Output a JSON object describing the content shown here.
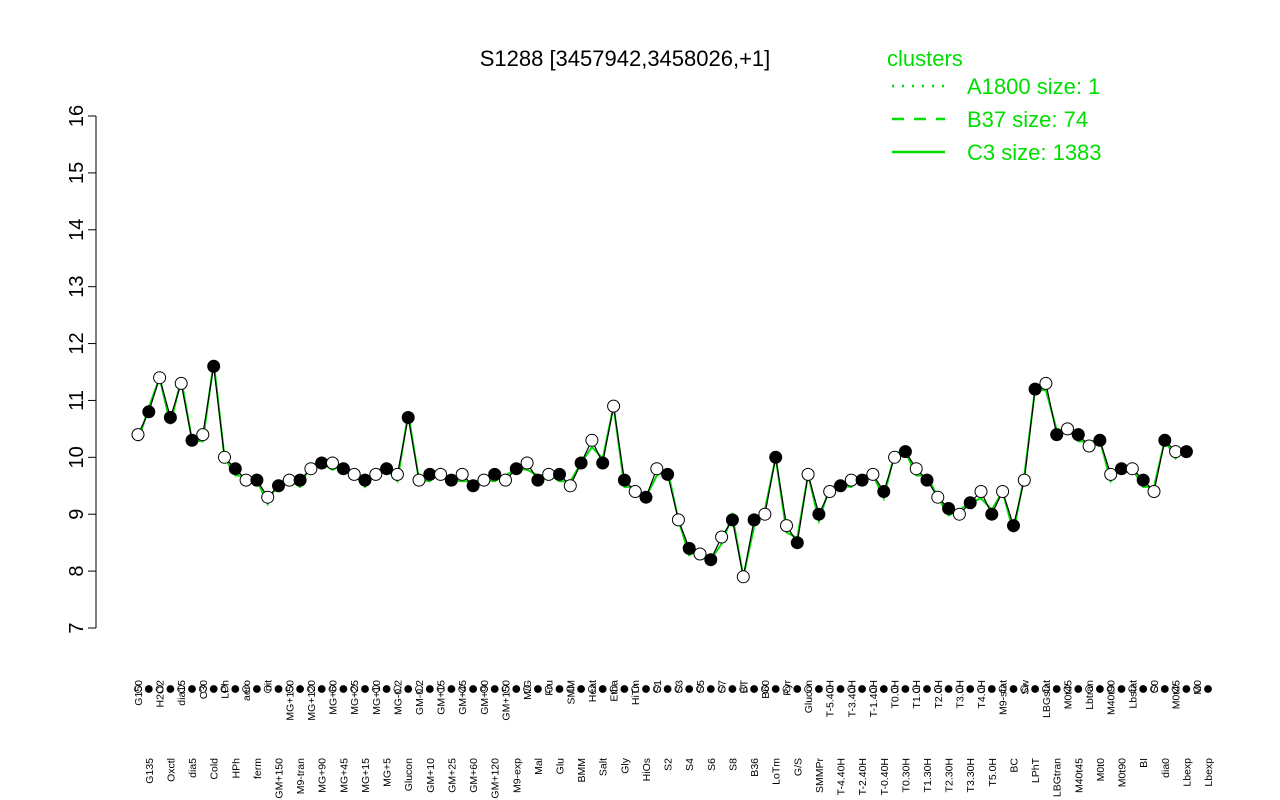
{
  "chart_data": {
    "type": "line",
    "title": "S1288 [3457942,3458026,+1]",
    "xlabel": "",
    "ylabel": "",
    "ylim": [
      7,
      16
    ],
    "yticks": [
      7,
      8,
      9,
      10,
      11,
      12,
      13,
      14,
      15,
      16
    ],
    "grid": false,
    "legend": {
      "title": "clusters",
      "position": "top-right",
      "entries": [
        {
          "label": "A1800 size: 1",
          "style": "dotted"
        },
        {
          "label": "B37 size: 74",
          "style": "dashed"
        },
        {
          "label": "C3 size: 1383",
          "style": "solid"
        }
      ]
    },
    "xlabels_upper": [
      "G150",
      "G135",
      "H2O2",
      "Oxctl",
      "dia15",
      "dia5",
      "C30",
      "Cold",
      "LPh",
      "HPh",
      "aero",
      "ferm",
      "nit",
      "GM+150",
      "MG+150",
      "M9-tran",
      "MG+120",
      "MG+90",
      "MG+60",
      "MG+45",
      "MG+25",
      "MG+15",
      "MG+10",
      "MG+5",
      "MG-0.2",
      "Glucon",
      "GM-0.2",
      "GM+10",
      "GM+15",
      "GM+25",
      "GM+45",
      "GM+60",
      "GM+90",
      "GM+120",
      "GM+150",
      "M9-exp",
      "M/G",
      "Mal",
      "Fru",
      "Glu",
      "SMM",
      "BMM",
      "Heat",
      "Salt",
      "Etha",
      "Gly",
      "HiTm",
      "HiOs",
      "S1",
      "S2",
      "S3",
      "S4",
      "S5",
      "S6",
      "S7",
      "S8",
      "BT",
      "B36",
      "B60",
      "LoTm",
      "Pyr",
      "G/S",
      "Glucon",
      "SMMPr",
      "T-5.40H",
      "T-4.40H",
      "T-3.40H",
      "T-2.40H",
      "T-1.40H",
      "T-0.40H",
      "T0.0H",
      "T0.30H",
      "T1.0H",
      "T1.30H",
      "T2.0H",
      "T2.30H",
      "T3.0H",
      "T3.30H",
      "T4.0H",
      "T5.0H",
      "M9-stat",
      "BC",
      "Sw",
      "LPhT",
      "LBGstat",
      "LBGtran",
      "M0t45",
      "M40t45",
      "Lbtran",
      "M0t0",
      "M40t90",
      "M0t90",
      "Lbstat",
      "BI",
      "S0",
      "dia0",
      "M0t45",
      "Lbexp",
      "M0",
      "Lbexp"
    ],
    "series": [
      {
        "x_index": [
          0,
          1,
          2,
          3,
          4,
          5,
          6,
          7,
          8,
          9,
          10,
          11,
          12,
          13,
          14,
          15,
          16,
          17,
          18,
          19,
          20,
          21,
          22,
          23,
          24,
          25,
          26,
          27,
          28,
          29,
          30,
          31,
          32,
          33,
          34,
          35,
          36,
          37,
          38,
          39,
          40,
          41,
          42,
          43,
          44,
          45,
          46,
          47,
          48,
          49,
          50,
          51,
          52,
          53,
          54,
          55,
          56,
          57,
          58,
          59,
          60,
          61,
          62,
          63,
          64,
          65,
          66,
          67,
          68,
          69,
          70,
          71,
          72,
          73,
          74,
          75,
          76,
          77,
          78,
          79,
          80,
          81,
          82,
          83,
          84,
          85,
          86,
          87,
          88,
          89,
          90,
          91,
          92,
          93,
          94,
          95,
          96,
          97
        ],
        "values": [
          10.4,
          10.8,
          11.4,
          10.7,
          11.3,
          10.3,
          10.4,
          11.6,
          10.0,
          9.8,
          9.6,
          9.6,
          9.3,
          9.5,
          9.6,
          9.6,
          9.8,
          9.9,
          9.9,
          9.8,
          9.7,
          9.6,
          9.7,
          9.8,
          9.7,
          10.7,
          9.6,
          9.7,
          9.7,
          9.6,
          9.7,
          9.5,
          9.6,
          9.7,
          9.6,
          9.8,
          9.9,
          9.6,
          9.7,
          9.7,
          9.5,
          9.9,
          10.3,
          9.9,
          10.9,
          9.6,
          9.4,
          9.3,
          9.8,
          9.7,
          8.9,
          8.4,
          8.3,
          8.2,
          8.6,
          8.9,
          7.9,
          8.9,
          9.0,
          10.0,
          8.8,
          8.5,
          9.7,
          9.0,
          9.4,
          9.5,
          9.6,
          9.6,
          9.7,
          9.4,
          10.0,
          10.1,
          9.8,
          9.6,
          9.3,
          9.1,
          9.0,
          9.2,
          9.4,
          9.0,
          9.4,
          8.8,
          9.6,
          11.2,
          11.3,
          10.4,
          10.5,
          10.4,
          10.2,
          10.3,
          9.7,
          9.8,
          9.8,
          9.6,
          9.4,
          10.3,
          10.1,
          10.1
        ]
      }
    ]
  }
}
